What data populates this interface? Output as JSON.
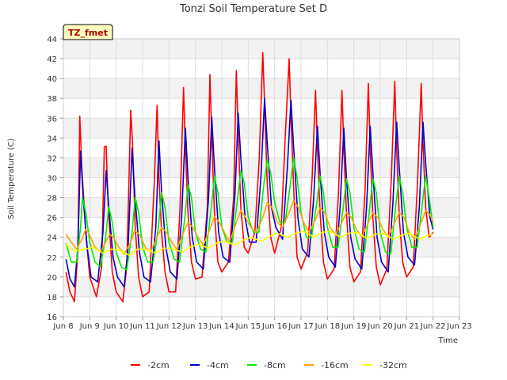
{
  "chart_data": {
    "type": "line",
    "title": "Tonzi Soil Temperature Set D",
    "xlabel": "Time",
    "ylabel": "Soil Temperature (C)",
    "tag": "TZ_fmet",
    "xlim": [
      8,
      23
    ],
    "ylim": [
      16,
      44
    ],
    "xticks": [
      8,
      9,
      10,
      11,
      12,
      13,
      14,
      15,
      16,
      17,
      18,
      19,
      20,
      21,
      22,
      23
    ],
    "xtick_labels": [
      "Jun 8",
      "Jun 9",
      "Jun 10",
      "Jun 11",
      "Jun 12",
      "Jun 13",
      "Jun 14",
      "Jun 15",
      "Jun 16",
      "Jun 17",
      "Jun 18",
      "Jun 19",
      "Jun 20",
      "Jun 21",
      "Jun 22",
      "Jun 23"
    ],
    "yticks": [
      16,
      18,
      20,
      22,
      24,
      26,
      28,
      30,
      32,
      34,
      36,
      38,
      40,
      42,
      44
    ],
    "grid": true,
    "legend_position": "bottom",
    "series": [
      {
        "name": "-2cm",
        "color": "#ff0000",
        "x": [
          8.1,
          8.25,
          8.42,
          8.55,
          8.62,
          8.7,
          8.85,
          9.0,
          9.25,
          9.45,
          9.55,
          9.62,
          9.7,
          9.85,
          10.0,
          10.25,
          10.4,
          10.55,
          10.62,
          10.72,
          10.85,
          11.0,
          11.25,
          11.45,
          11.55,
          11.62,
          11.72,
          11.85,
          12.0,
          12.25,
          12.42,
          12.55,
          12.62,
          12.72,
          12.85,
          13.0,
          13.25,
          13.45,
          13.55,
          13.62,
          13.72,
          13.85,
          14.0,
          14.25,
          14.45,
          14.55,
          14.62,
          14.72,
          14.85,
          15.0,
          15.25,
          15.42,
          15.55,
          15.62,
          15.72,
          15.85,
          16.0,
          16.25,
          16.4,
          16.55,
          16.62,
          16.72,
          16.85,
          17.0,
          17.25,
          17.42,
          17.55,
          17.62,
          17.72,
          17.85,
          18.0,
          18.25,
          18.42,
          18.55,
          18.62,
          18.72,
          18.85,
          19.0,
          19.25,
          19.42,
          19.55,
          19.62,
          19.72,
          19.85,
          20.0,
          20.25,
          20.42,
          20.55,
          20.62,
          20.72,
          20.85,
          21.0,
          21.25,
          21.42,
          21.55,
          21.62,
          21.72,
          21.85,
          22.0
        ],
        "values": [
          20.5,
          18.5,
          17.5,
          22.5,
          36.2,
          31.0,
          24.5,
          20.0,
          18.0,
          21.0,
          33.1,
          33.2,
          27.0,
          20.5,
          18.5,
          17.5,
          21.0,
          36.8,
          33.5,
          25.0,
          20.0,
          18.0,
          18.5,
          30.0,
          37.3,
          30.0,
          24.5,
          20.5,
          18.5,
          18.5,
          27.0,
          39.1,
          33.0,
          26.5,
          21.5,
          19.8,
          20.0,
          27.0,
          40.4,
          34.0,
          26.5,
          21.5,
          20.5,
          21.5,
          28.0,
          40.8,
          34.5,
          27.0,
          23.0,
          22.4,
          24.5,
          32.0,
          42.6,
          37.5,
          29.5,
          24.0,
          22.4,
          25.0,
          34.0,
          42.0,
          36.0,
          29.0,
          22.0,
          20.8,
          22.5,
          30.0,
          38.8,
          33.0,
          26.5,
          21.5,
          19.8,
          20.8,
          28.5,
          38.8,
          33.0,
          26.5,
          21.0,
          19.5,
          20.5,
          28.5,
          39.5,
          33.0,
          26.0,
          21.0,
          19.2,
          20.8,
          30.0,
          39.7,
          33.0,
          26.0,
          21.5,
          20.0,
          21.0,
          30.0,
          39.5,
          33.5,
          27.0,
          24.0,
          24.5
        ]
      },
      {
        "name": "-4cm",
        "color": "#0000cc",
        "x": [
          8.1,
          8.25,
          8.42,
          8.55,
          8.65,
          8.75,
          8.9,
          9.05,
          9.3,
          9.5,
          9.62,
          9.72,
          9.88,
          10.05,
          10.3,
          10.45,
          10.6,
          10.7,
          10.88,
          11.05,
          11.3,
          11.5,
          11.62,
          11.72,
          11.88,
          12.05,
          12.3,
          12.48,
          12.62,
          12.72,
          12.88,
          13.05,
          13.3,
          13.5,
          13.62,
          13.72,
          13.88,
          14.05,
          14.3,
          14.5,
          14.62,
          14.72,
          14.88,
          15.05,
          15.3,
          15.48,
          15.62,
          15.72,
          15.88,
          16.05,
          16.3,
          16.48,
          16.62,
          16.72,
          16.88,
          17.05,
          17.3,
          17.48,
          17.62,
          17.72,
          17.88,
          18.05,
          18.3,
          18.48,
          18.62,
          18.72,
          18.88,
          19.05,
          19.3,
          19.48,
          19.62,
          19.72,
          19.88,
          20.05,
          20.3,
          20.48,
          20.62,
          20.72,
          20.88,
          21.05,
          21.3,
          21.48,
          21.62,
          21.72,
          21.88,
          22.0
        ],
        "values": [
          21.8,
          19.8,
          19.0,
          23.0,
          32.7,
          28.0,
          23.0,
          20.0,
          19.5,
          24.5,
          30.7,
          27.0,
          22.0,
          20.0,
          19.0,
          23.0,
          33.0,
          28.5,
          22.5,
          20.0,
          19.5,
          25.0,
          33.7,
          28.5,
          23.0,
          20.5,
          19.8,
          26.0,
          35.0,
          30.0,
          24.0,
          21.5,
          20.8,
          28.0,
          36.1,
          31.0,
          24.5,
          22.0,
          21.5,
          28.5,
          36.5,
          32.0,
          26.0,
          23.5,
          23.5,
          30.0,
          38.0,
          33.5,
          27.0,
          25.0,
          23.8,
          31.0,
          37.8,
          33.0,
          26.0,
          22.8,
          22.0,
          28.0,
          35.2,
          30.5,
          24.5,
          22.0,
          21.0,
          27.0,
          35.0,
          30.0,
          24.0,
          21.8,
          20.8,
          27.0,
          35.2,
          30.5,
          24.0,
          21.5,
          20.5,
          27.5,
          35.6,
          31.0,
          24.5,
          22.0,
          21.2,
          27.0,
          35.6,
          31.5,
          26.0,
          24.8
        ]
      },
      {
        "name": "-8cm",
        "color": "#00ee00",
        "x": [
          8.1,
          8.3,
          8.5,
          8.65,
          8.72,
          8.85,
          9.0,
          9.2,
          9.4,
          9.6,
          9.72,
          9.85,
          10.0,
          10.2,
          10.4,
          10.6,
          10.72,
          10.85,
          11.0,
          11.2,
          11.4,
          11.6,
          11.72,
          11.85,
          12.0,
          12.2,
          12.4,
          12.6,
          12.72,
          12.85,
          13.0,
          13.2,
          13.4,
          13.6,
          13.72,
          13.85,
          14.0,
          14.2,
          14.4,
          14.6,
          14.72,
          14.85,
          15.0,
          15.2,
          15.4,
          15.6,
          15.72,
          15.85,
          16.0,
          16.2,
          16.4,
          16.6,
          16.72,
          16.85,
          17.0,
          17.2,
          17.4,
          17.6,
          17.72,
          17.85,
          18.0,
          18.2,
          18.4,
          18.6,
          18.72,
          18.85,
          19.0,
          19.2,
          19.4,
          19.6,
          19.72,
          19.85,
          20.0,
          20.2,
          20.4,
          20.6,
          20.72,
          20.85,
          21.0,
          21.2,
          21.4,
          21.6,
          21.72,
          21.85,
          22.0
        ],
        "values": [
          23.4,
          21.5,
          21.5,
          25.0,
          28.0,
          26.5,
          23.5,
          21.5,
          21.0,
          24.0,
          27.1,
          25.5,
          22.5,
          21.0,
          20.7,
          24.5,
          28.0,
          26.5,
          23.0,
          21.5,
          21.5,
          25.0,
          28.5,
          27.0,
          23.5,
          21.8,
          21.5,
          26.0,
          29.3,
          28.0,
          24.5,
          22.8,
          22.5,
          27.0,
          30.2,
          28.5,
          25.0,
          23.5,
          23.5,
          28.0,
          30.7,
          29.5,
          26.0,
          24.5,
          24.5,
          29.5,
          31.8,
          30.5,
          27.5,
          25.5,
          25.5,
          29.5,
          32.0,
          30.0,
          26.5,
          24.0,
          24.0,
          27.5,
          30.2,
          28.5,
          25.0,
          23.0,
          23.0,
          27.0,
          29.9,
          28.5,
          25.0,
          22.8,
          22.5,
          27.0,
          29.9,
          28.5,
          24.5,
          22.5,
          22.3,
          27.5,
          30.1,
          28.5,
          25.0,
          23.0,
          23.0,
          27.5,
          30.2,
          28.0,
          25.0
        ]
      },
      {
        "name": "-16cm",
        "color": "#ffa500",
        "x": [
          8.1,
          8.3,
          8.5,
          8.7,
          8.85,
          9.0,
          9.2,
          9.4,
          9.6,
          9.75,
          9.9,
          10.1,
          10.3,
          10.55,
          10.7,
          10.9,
          11.1,
          11.3,
          11.55,
          11.72,
          11.9,
          12.1,
          12.3,
          12.55,
          12.72,
          12.9,
          13.1,
          13.3,
          13.55,
          13.72,
          13.9,
          14.1,
          14.3,
          14.55,
          14.72,
          14.9,
          15.1,
          15.3,
          15.55,
          15.72,
          15.9,
          16.1,
          16.3,
          16.55,
          16.72,
          16.9,
          17.1,
          17.3,
          17.55,
          17.72,
          17.9,
          18.1,
          18.3,
          18.55,
          18.72,
          18.9,
          19.1,
          19.3,
          19.55,
          19.72,
          19.9,
          20.1,
          20.3,
          20.55,
          20.72,
          20.9,
          21.1,
          21.3,
          21.55,
          21.72,
          21.9,
          22.0
        ],
        "values": [
          24.3,
          23.5,
          22.8,
          23.8,
          24.8,
          24.2,
          23.0,
          22.5,
          23.5,
          24.3,
          24.0,
          23.0,
          22.3,
          23.5,
          24.7,
          24.2,
          23.0,
          22.5,
          24.0,
          25.0,
          24.5,
          23.5,
          22.8,
          24.5,
          25.5,
          25.0,
          24.0,
          23.2,
          24.8,
          26.1,
          25.5,
          24.5,
          23.5,
          25.5,
          26.7,
          26.0,
          25.0,
          24.5,
          26.0,
          27.5,
          27.0,
          25.5,
          25.0,
          26.5,
          27.7,
          27.0,
          25.5,
          24.5,
          25.8,
          27.0,
          26.5,
          25.0,
          24.3,
          25.5,
          26.5,
          26.0,
          24.8,
          24.0,
          25.5,
          26.5,
          26.0,
          24.8,
          24.0,
          25.5,
          26.5,
          26.0,
          24.5,
          23.8,
          25.5,
          26.7,
          26.2,
          25.5
        ]
      },
      {
        "name": "-32cm",
        "color": "#ffff00",
        "x": [
          8.1,
          8.4,
          8.8,
          9.1,
          9.5,
          9.8,
          10.1,
          10.5,
          10.8,
          11.1,
          11.5,
          11.8,
          12.1,
          12.5,
          12.8,
          13.1,
          13.5,
          13.8,
          14.1,
          14.5,
          14.8,
          15.1,
          15.5,
          15.8,
          16.1,
          16.5,
          16.8,
          17.1,
          17.5,
          17.8,
          18.1,
          18.5,
          18.8,
          19.1,
          19.5,
          19.8,
          20.1,
          20.5,
          20.8,
          21.1,
          21.5,
          21.8,
          22.0
        ],
        "values": [
          23.3,
          22.6,
          22.8,
          23.0,
          22.4,
          22.8,
          22.7,
          22.2,
          22.8,
          22.8,
          22.4,
          22.9,
          22.9,
          22.5,
          23.0,
          23.3,
          22.9,
          23.4,
          23.6,
          23.2,
          23.7,
          24.0,
          23.6,
          24.1,
          24.4,
          24.0,
          24.4,
          24.6,
          24.0,
          24.5,
          24.6,
          24.0,
          24.4,
          24.5,
          23.9,
          24.3,
          24.4,
          23.8,
          24.2,
          24.4,
          23.8,
          24.2,
          24.3
        ]
      }
    ]
  }
}
